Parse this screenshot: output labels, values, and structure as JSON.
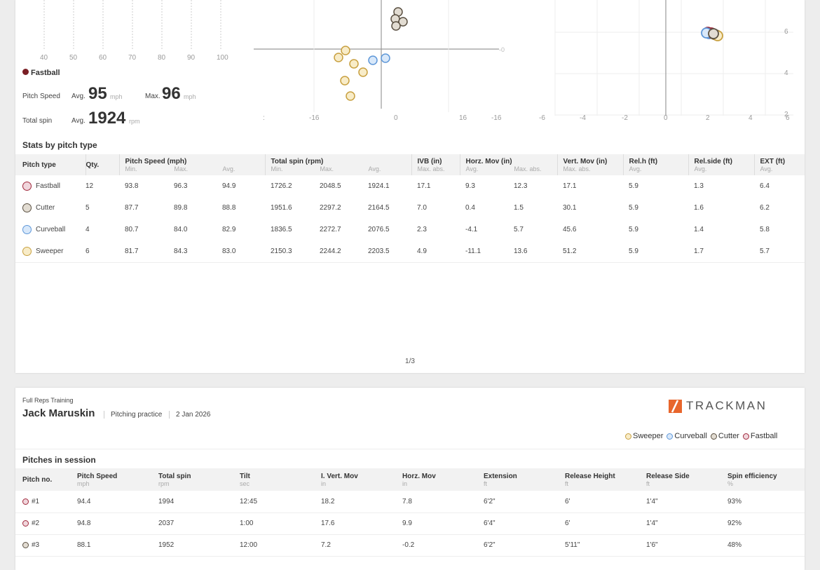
{
  "colors": {
    "fastball_fill": "#f0d6dc",
    "fastball_edge": "#a0273b",
    "cutter_fill": "#e2dcd2",
    "cutter_edge": "#5a5042",
    "curveball_fill": "#d8e8fa",
    "curveball_edge": "#5e97d8",
    "sweeper_fill": "#f8ecc8",
    "sweeper_edge": "#c8a040",
    "fastball_solid": "#7a1f25"
  },
  "speed_axis": {
    "ticks": [
      "40",
      "50",
      "60",
      "70",
      "80",
      "90",
      "100"
    ]
  },
  "movement_chart": {
    "x_ticks": [
      "-16",
      "0",
      "16"
    ],
    "zero_label": "-0",
    "left_partial_label": ":"
  },
  "release_chart": {
    "x_ticks": [
      "-16",
      "-6",
      "-4",
      "-2",
      "0",
      "2",
      "4",
      "6"
    ],
    "y_ticks": [
      "6",
      "4",
      "2"
    ]
  },
  "summary": {
    "legend_label": "Fastball",
    "pitch_speed_label": "Pitch Speed",
    "total_spin_label": "Total spin",
    "avg_label": "Avg.",
    "max_label": "Max.",
    "speed_avg": "95",
    "speed_max": "96",
    "speed_unit": "mph",
    "spin_avg": "1924",
    "spin_unit": "rpm"
  },
  "stats": {
    "title": "Stats by pitch type",
    "headers": {
      "pitch_type": "Pitch type",
      "qty": "Qty.",
      "speed": "Pitch Speed (mph)",
      "spin": "Total spin (rpm)",
      "ivb": "IVB (in)",
      "horz": "Horz. Mov (in)",
      "vert": "Vert. Mov (in)",
      "relh": "Rel.h (ft)",
      "relside": "Rel.side (ft)",
      "ext": "EXT (ft)"
    },
    "subheaders": {
      "min": "Min.",
      "max": "Max.",
      "avg": "Avg.",
      "max_abs": "Max. abs."
    },
    "rows": [
      {
        "key": "fastball",
        "name": "Fastball",
        "qty": "12",
        "smin": "93.8",
        "smax": "96.3",
        "savg": "94.9",
        "pmin": "1726.2",
        "pmax": "2048.5",
        "pavg": "1924.1",
        "ivb": "17.1",
        "havg": "9.3",
        "hmax": "12.3",
        "vert": "17.1",
        "relh": "5.9",
        "relside": "1.3",
        "ext": "6.4"
      },
      {
        "key": "cutter",
        "name": "Cutter",
        "qty": "5",
        "smin": "87.7",
        "smax": "89.8",
        "savg": "88.8",
        "pmin": "1951.6",
        "pmax": "2297.2",
        "pavg": "2164.5",
        "ivb": "7.0",
        "havg": "0.4",
        "hmax": "1.5",
        "vert": "30.1",
        "relh": "5.9",
        "relside": "1.6",
        "ext": "6.2"
      },
      {
        "key": "curveball",
        "name": "Curveball",
        "qty": "4",
        "smin": "80.7",
        "smax": "84.0",
        "savg": "82.9",
        "pmin": "1836.5",
        "pmax": "2272.7",
        "pavg": "2076.5",
        "ivb": "2.3",
        "havg": "-4.1",
        "hmax": "5.7",
        "vert": "45.6",
        "relh": "5.9",
        "relside": "1.4",
        "ext": "5.8"
      },
      {
        "key": "sweeper",
        "name": "Sweeper",
        "qty": "6",
        "smin": "81.7",
        "smax": "84.3",
        "savg": "83.0",
        "pmin": "2150.3",
        "pmax": "2244.2",
        "pavg": "2203.5",
        "ivb": "4.9",
        "havg": "-11.1",
        "hmax": "13.6",
        "vert": "51.2",
        "relh": "5.9",
        "relside": "1.7",
        "ext": "5.7"
      }
    ]
  },
  "page_number": "1/3",
  "header": {
    "org": "Full Reps Training",
    "player": "Jack Maruskin",
    "session_type": "Pitching practice",
    "date": "2 Jan 2026",
    "brand": "TRACKMAN"
  },
  "legend": [
    {
      "key": "sweeper",
      "label": "Sweeper"
    },
    {
      "key": "curveball",
      "label": "Curveball"
    },
    {
      "key": "cutter",
      "label": "Cutter"
    },
    {
      "key": "fastball",
      "label": "Fastball"
    }
  ],
  "pitches": {
    "title": "Pitches in session",
    "headers": [
      "Pitch no.",
      "Pitch Speed",
      "Total spin",
      "Tilt",
      "I. Vert. Mov",
      "Horz. Mov",
      "Extension",
      "Release Height",
      "Release Side",
      "Spin efficiency"
    ],
    "units": [
      "",
      "mph",
      "rpm",
      "sec",
      "in",
      "in",
      "ft",
      "ft",
      "ft",
      "%"
    ],
    "rows": [
      {
        "key": "fastball",
        "no": "#1",
        "speed": "94.4",
        "spin": "1994",
        "tilt": "12:45",
        "ivb": "18.2",
        "horz": "7.8",
        "ext": "6'2\"",
        "rh": "6'",
        "rs": "1'4\"",
        "eff": "93%"
      },
      {
        "key": "fastball",
        "no": "#2",
        "speed": "94.8",
        "spin": "2037",
        "tilt": "1:00",
        "ivb": "17.6",
        "horz": "9.9",
        "ext": "6'4\"",
        "rh": "6'",
        "rs": "1'4\"",
        "eff": "92%"
      },
      {
        "key": "cutter",
        "no": "#3",
        "speed": "88.1",
        "spin": "1952",
        "tilt": "12:00",
        "ivb": "7.2",
        "horz": "-0.2",
        "ext": "6'2\"",
        "rh": "5'11\"",
        "rs": "1'6\"",
        "eff": "48%"
      }
    ]
  }
}
